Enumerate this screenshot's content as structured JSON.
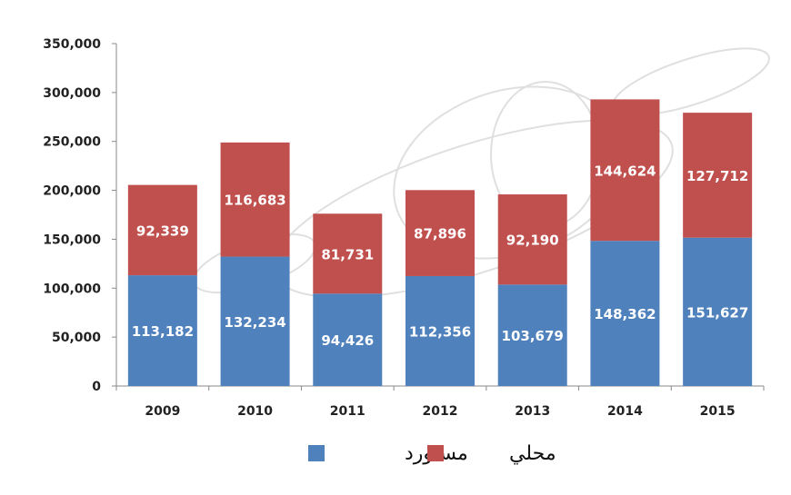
{
  "chart_data": {
    "type": "bar",
    "stacked": true,
    "title": "",
    "xlabel": "",
    "ylabel": "",
    "categories": [
      "2009",
      "2010",
      "2011",
      "2012",
      "2013",
      "2014",
      "2015"
    ],
    "series": [
      {
        "name": "مستورد",
        "color": "#4F81BD",
        "values": [
          113182,
          132234,
          94426,
          112356,
          103679,
          148362,
          151627
        ],
        "labels": [
          "113,182",
          "132,234",
          "94,426",
          "112,356",
          "103,679",
          "148,362",
          "151,627"
        ]
      },
      {
        "name": "محلي",
        "color": "#C0504D",
        "values": [
          92339,
          116683,
          81731,
          87896,
          92190,
          144624,
          127712
        ],
        "labels": [
          "92,339",
          "116,683",
          "81,731",
          "87,896",
          "92,190",
          "144,624",
          "127,712"
        ]
      }
    ],
    "ylim": [
      0,
      350000
    ],
    "yticks": [
      0,
      50000,
      100000,
      150000,
      200000,
      250000,
      300000,
      350000
    ],
    "ytick_labels": [
      "0",
      "50,000",
      "100,000",
      "150,000",
      "200,000",
      "250,000",
      "300,000",
      "350,000"
    ],
    "grid": false,
    "legend_position": "bottom",
    "background_image": "gearbox-illustration"
  }
}
